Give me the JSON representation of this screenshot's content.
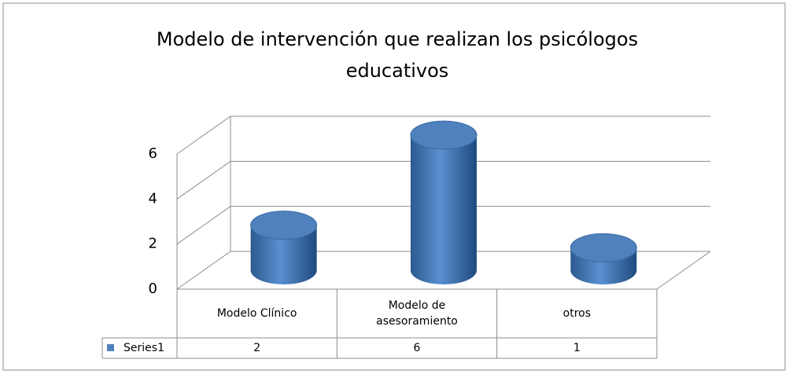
{
  "chart_data": {
    "type": "bar3d",
    "title": "Modelo de intervención que realizan los psicólogos educativos",
    "categories": [
      "Modelo Clínico",
      "Modelo de asesoramiento",
      "otros"
    ],
    "series": [
      {
        "name": "Series1",
        "color": "#4f81bd",
        "values": [
          2,
          6,
          1
        ]
      }
    ],
    "ylim": [
      0,
      6
    ],
    "yticks": [
      0,
      2,
      4,
      6
    ],
    "grid": true,
    "data_table": true
  }
}
